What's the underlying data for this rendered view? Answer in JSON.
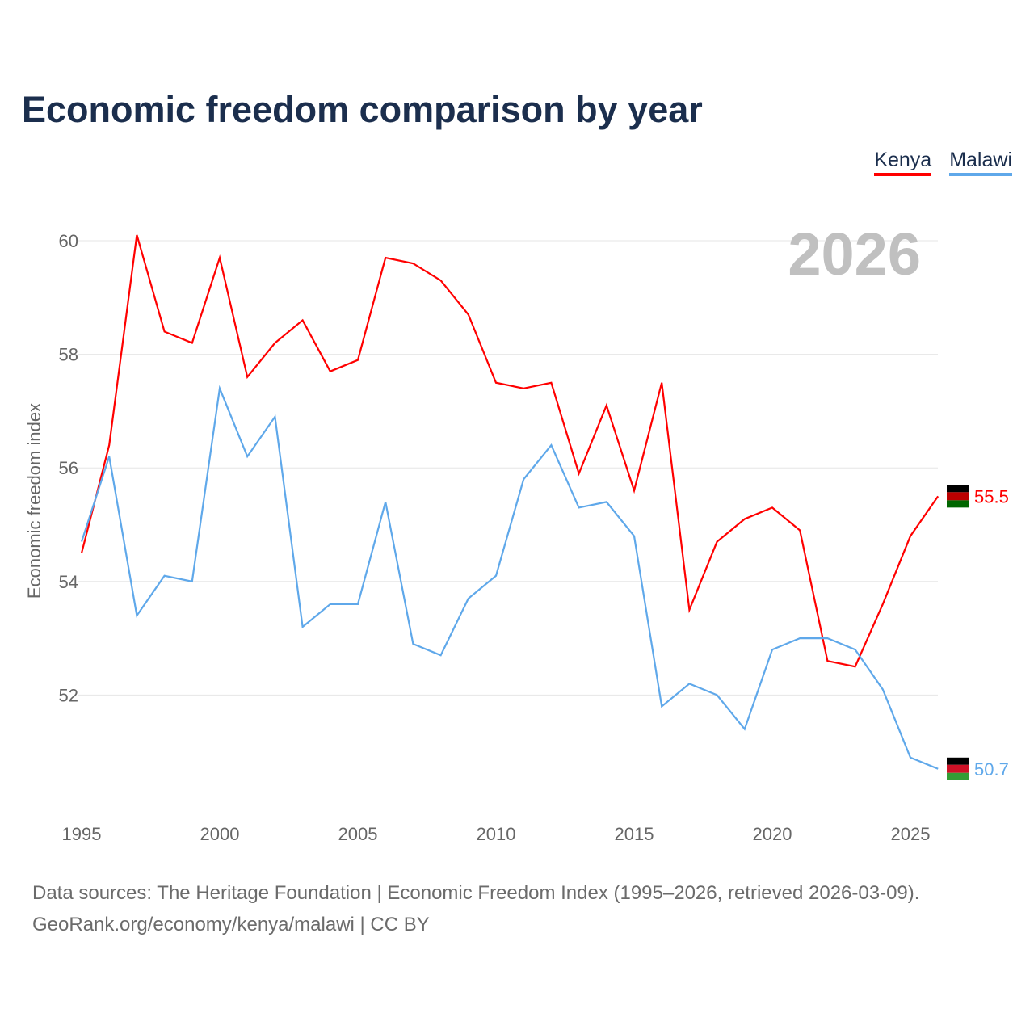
{
  "chart_data": {
    "type": "line",
    "title": "Economic freedom comparison by year",
    "xlabel": "",
    "ylabel": "Economic freedom index",
    "ylim": [
      50.4,
      60.3
    ],
    "xlim": [
      1995,
      2026
    ],
    "yticks": [
      52,
      54,
      56,
      58,
      60
    ],
    "xticks": [
      1995,
      2000,
      2005,
      2010,
      2015,
      2020,
      2025
    ],
    "grid": true,
    "legend_position": "top-right",
    "year_label": "2026",
    "x": [
      1995,
      1996,
      1997,
      1998,
      1999,
      2000,
      2001,
      2002,
      2003,
      2004,
      2005,
      2006,
      2007,
      2008,
      2009,
      2010,
      2011,
      2012,
      2013,
      2014,
      2015,
      2016,
      2017,
      2018,
      2019,
      2020,
      2021,
      2022,
      2023,
      2024,
      2025,
      2026
    ],
    "series": [
      {
        "name": "Kenya",
        "color": "#ff0000",
        "end_label": "55.5",
        "values": [
          54.5,
          56.4,
          60.1,
          58.4,
          58.2,
          59.7,
          57.6,
          58.2,
          58.6,
          57.7,
          57.9,
          59.7,
          59.6,
          59.3,
          58.7,
          57.5,
          57.4,
          57.5,
          55.9,
          57.1,
          55.6,
          57.5,
          53.5,
          54.7,
          55.1,
          55.3,
          54.9,
          52.6,
          52.5,
          53.6,
          54.8,
          55.5
        ]
      },
      {
        "name": "Malawi",
        "color": "#5fa8ea",
        "end_label": "50.7",
        "values": [
          54.7,
          56.2,
          53.4,
          54.1,
          54.0,
          57.4,
          56.2,
          56.9,
          53.2,
          53.6,
          53.6,
          55.4,
          52.9,
          52.7,
          53.7,
          54.1,
          55.8,
          56.4,
          55.3,
          55.4,
          54.8,
          51.8,
          52.2,
          52.0,
          51.4,
          52.8,
          53.0,
          53.0,
          52.8,
          52.1,
          50.9,
          50.7
        ]
      }
    ]
  },
  "footer": {
    "line1": "Data sources: The Heritage Foundation | Economic Freedom Index (1995–2026, retrieved 2026-03-09).",
    "line2": "GeoRank.org/economy/kenya/malawi | CC BY"
  }
}
